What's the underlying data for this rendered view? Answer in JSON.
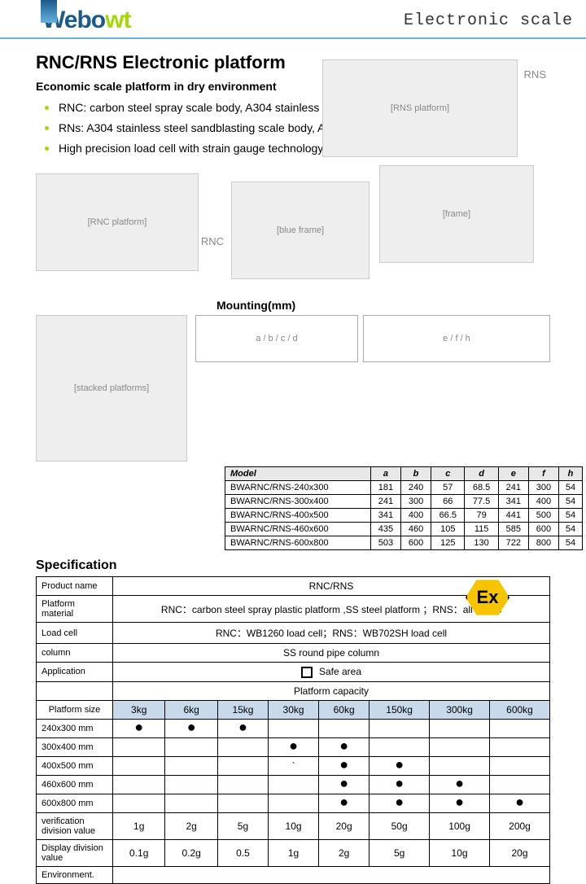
{
  "header": {
    "logo_w": "Webo",
    "logo_rest": "wt",
    "title": "Electronic scale"
  },
  "main": {
    "title": "RNC/RNS  Electronic platform",
    "subtitle": "Economic scale platform in dry environment",
    "features": [
      "RNC: carbon steel spray scale body, A304 stainless table；",
      "RNs: A304 stainless steel sandblasting scale body, A304 stainless steel table",
      "High precision load cell with strain gauge technology"
    ],
    "label_rns": "RNS",
    "label_rnc": "RNC"
  },
  "mounting": {
    "title": "Mounting(mm)",
    "cols": [
      "Model",
      "a",
      "b",
      "c",
      "d",
      "e",
      "f",
      "h"
    ],
    "rows": [
      [
        "BWARNC/RNS-240x300",
        "181",
        "240",
        "57",
        "68.5",
        "241",
        "300",
        "54"
      ],
      [
        "BWARNC/RNS-300x400",
        "241",
        "300",
        "66",
        "77.5",
        "341",
        "400",
        "54"
      ],
      [
        "BWARNC/RNS-400x500",
        "341",
        "400",
        "66.5",
        "79",
        "441",
        "500",
        "54"
      ],
      [
        "BWARNC/RNS-460x600",
        "435",
        "460",
        "105",
        "115",
        "585",
        "600",
        "54"
      ],
      [
        "BWARNC/RNS-600x800",
        "503",
        "600",
        "125",
        "130",
        "722",
        "800",
        "54"
      ]
    ]
  },
  "spec": {
    "title": "Specification",
    "rows": [
      {
        "label": "Product name",
        "value": "RNC/RNS"
      },
      {
        "label": "Platform material",
        "value": "RNC：carbon steel spray  plastic platform ,SS steel platform ；RNS：all 304ss"
      },
      {
        "label": "Load cell",
        "value": "RNC：WB1260 load cell；RNS：WB702SH load cell"
      },
      {
        "label": "column",
        "value": "SS round pipe column"
      },
      {
        "label": "Application",
        "value": "Safe area",
        "safebox": true
      }
    ],
    "capacity_header": "Platform capacity",
    "cap_cols": [
      "Platform size",
      "3kg",
      "6kg",
      "15kg",
      "30kg",
      "60kg",
      "150kg",
      "300kg",
      "600kg"
    ],
    "cap_rows": [
      {
        "size": "240x300 mm",
        "dots": [
          1,
          1,
          1,
          0,
          0,
          0,
          0,
          0
        ]
      },
      {
        "size": "300x400 mm",
        "dots": [
          0,
          0,
          0,
          1,
          1,
          0,
          0,
          0
        ]
      },
      {
        "size": "400x500 mm",
        "dots": [
          0,
          0,
          0,
          0,
          1,
          1,
          0,
          0
        ],
        "tick": 3
      },
      {
        "size": "460x600 mm",
        "dots": [
          0,
          0,
          0,
          0,
          1,
          1,
          1,
          0
        ]
      },
      {
        "size": "600x800 mm",
        "dots": [
          0,
          0,
          0,
          0,
          1,
          1,
          1,
          1
        ]
      }
    ],
    "verif": {
      "label": "verification division value",
      "vals": [
        "1g",
        "2g",
        "5g",
        "10g",
        "20g",
        "50g",
        "100g",
        "200g"
      ]
    },
    "display": {
      "label": "Display division value",
      "vals": [
        "0.1g",
        "0.2g",
        "0.5",
        "1g",
        "2g",
        "5g",
        "10g",
        "20g"
      ]
    },
    "env_label": "Environment."
  },
  "ex_badge": "Ex"
}
